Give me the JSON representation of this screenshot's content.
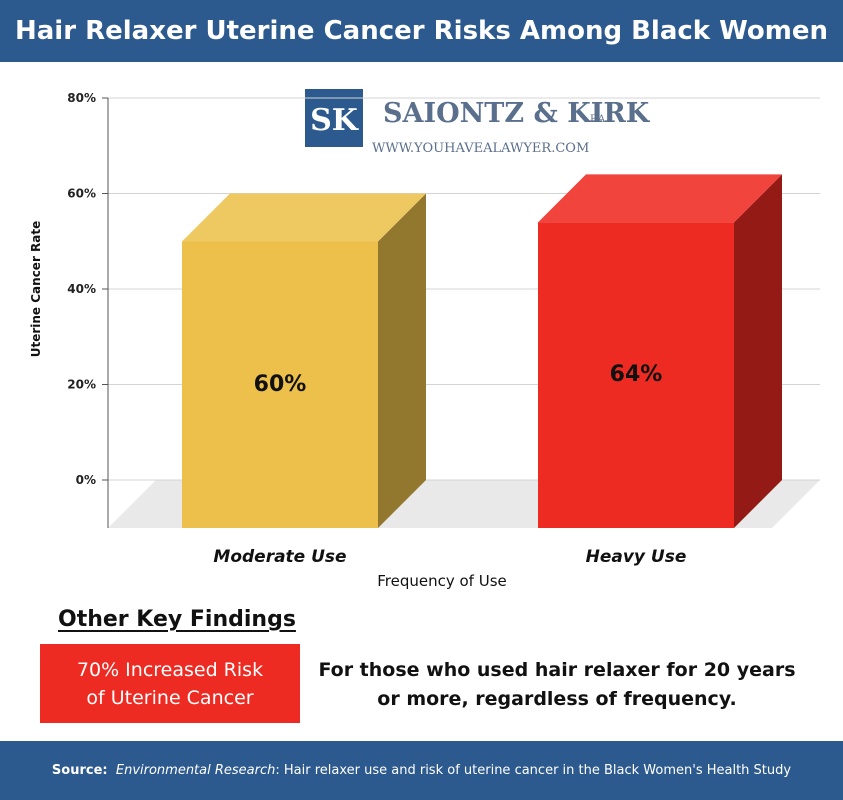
{
  "header": {
    "title": "Hair Relaxer Uterine Cancer Risks Among Black Women"
  },
  "logo": {
    "monogram": "SK",
    "firm_name": "SAIONTZ & KIRK",
    "firm_suffix": "P.A.",
    "website": "WWW.YOUHAVEALAWYER.COM"
  },
  "chart_data": {
    "type": "bar",
    "categories": [
      "Moderate Use",
      "Heavy Use"
    ],
    "values": [
      60,
      64
    ],
    "value_labels": [
      "60%",
      "64%"
    ],
    "bar_colors": [
      "#ecc04a",
      "#ee2b22"
    ],
    "ylabel": "Uterine Cancer Rate",
    "xlabel": "Frequency of Use",
    "ylim": [
      0,
      80
    ],
    "yticks": [
      "0%",
      "20%",
      "40%",
      "60%",
      "80%"
    ],
    "grid": true
  },
  "findings": {
    "heading": "Other Key Findings",
    "box_text": "70% Increased Risk\nof Uterine Cancer",
    "box_color": "#ee2b22",
    "detail": "For those who used hair relaxer for 20 years\nor more, regardless of frequency."
  },
  "footer": {
    "label": "Source:",
    "journal": "Environmental Research",
    "rest": ": Hair relaxer use and risk of uterine cancer in the Black Women's Health Study"
  },
  "colors": {
    "brand_blue": "#2d5a8e"
  }
}
